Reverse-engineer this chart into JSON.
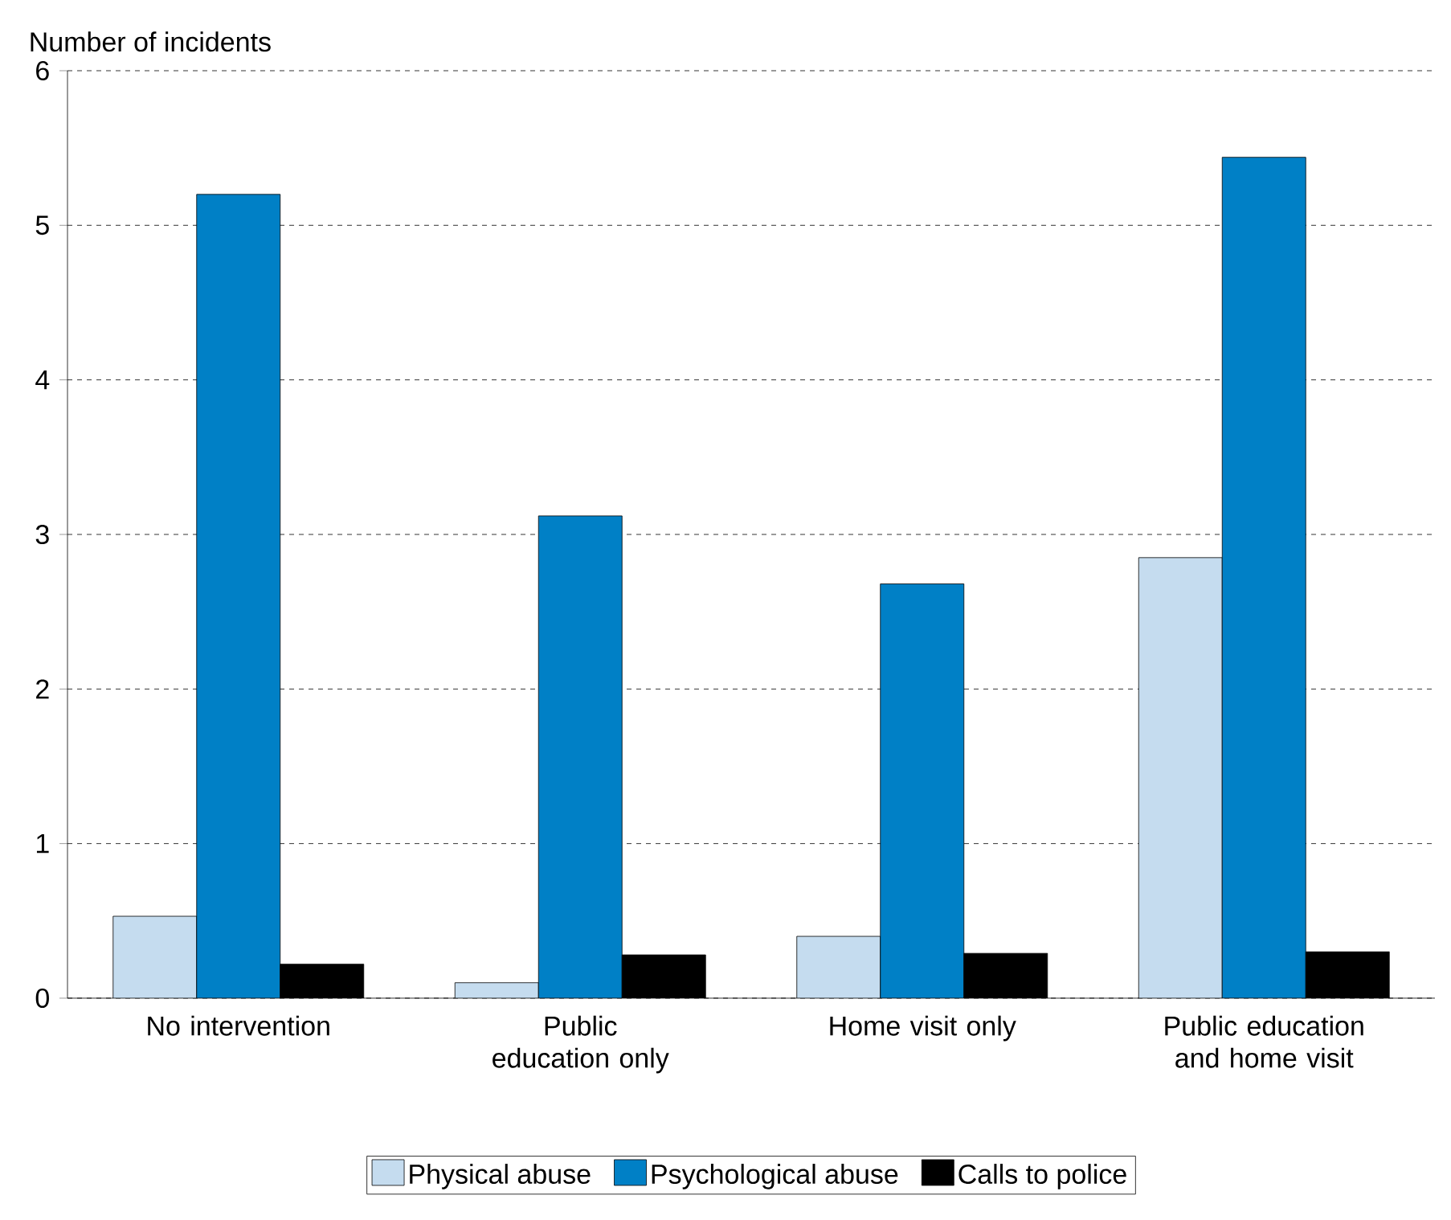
{
  "chart_data": {
    "type": "bar",
    "ylabel": "Number of incidents",
    "categories": [
      "No intervention",
      "Public education only",
      "Home visit only",
      "Public education and home visit"
    ],
    "series": [
      {
        "name": "Physical abuse",
        "color": "#c5dcef",
        "values": [
          0.53,
          0.1,
          0.4,
          2.85
        ]
      },
      {
        "name": "Psychological abuse",
        "color": "#0080c6",
        "values": [
          5.2,
          3.12,
          2.68,
          5.44
        ]
      },
      {
        "name": "Calls to police",
        "color": "#000000",
        "values": [
          0.22,
          0.28,
          0.29,
          0.3
        ]
      }
    ],
    "ylim": [
      0,
      6
    ],
    "yticks": [
      0,
      1,
      2,
      3,
      4,
      5,
      6
    ],
    "grid": "y",
    "legend": "bottom"
  }
}
